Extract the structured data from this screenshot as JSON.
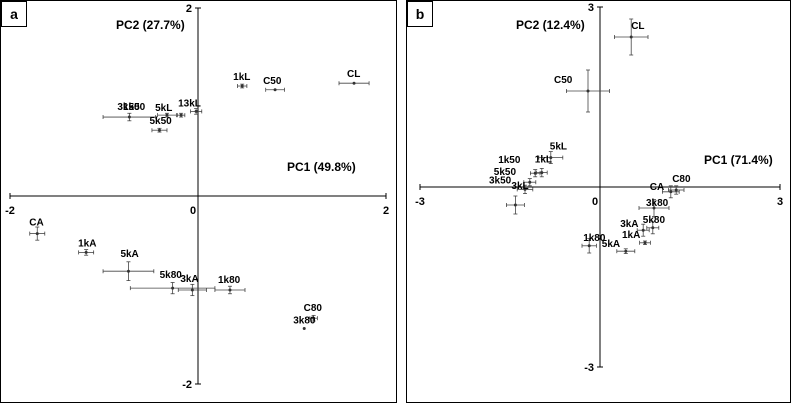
{
  "chart_data": [
    {
      "type": "scatter",
      "panel_label": "a",
      "xaxis_title": "PC1 (49.8%)",
      "yaxis_title": "PC2 (27.7%)",
      "xlim": [
        -2,
        2
      ],
      "ylim": [
        -2,
        2
      ],
      "x_ticks": [
        "-2",
        "0",
        "2"
      ],
      "y_ticks": [
        "2",
        "0",
        "-2"
      ],
      "tick_values_x": [
        -2,
        0,
        2
      ],
      "tick_values_y": [
        2,
        0,
        -2
      ],
      "points": [
        {
          "label": "CL",
          "x": 1.66,
          "y": 1.2,
          "xerr": 0.16,
          "yerr": 0.0
        },
        {
          "label": "C50",
          "x": 0.82,
          "y": 1.13,
          "xerr": 0.1,
          "yerr": 0.0
        },
        {
          "label": "1kL",
          "x": 0.47,
          "y": 1.17,
          "xerr": 0.05,
          "yerr": 0.02
        },
        {
          "label": "13kL",
          "x": -0.02,
          "y": 0.9,
          "xerr": 0.06,
          "yerr": 0.03
        },
        {
          "label": "5kL",
          "x": -0.18,
          "y": 0.86,
          "xerr": 0.04,
          "yerr": 0.02
        },
        {
          "label": "1k50",
          "x": -0.33,
          "y": 0.86,
          "xerr": 0.1,
          "yerr": 0.02
        },
        {
          "label": "3k50",
          "x": -0.73,
          "y": 0.84,
          "xerr": 0.28,
          "yerr": 0.04
        },
        {
          "label": "5k50",
          "x": -0.41,
          "y": 0.7,
          "xerr": 0.08,
          "yerr": 0.02
        },
        {
          "label": "CA",
          "x": -1.71,
          "y": -0.4,
          "xerr": 0.08,
          "yerr": 0.07
        },
        {
          "label": "1kA",
          "x": -1.19,
          "y": -0.6,
          "xerr": 0.08,
          "yerr": 0.03
        },
        {
          "label": "5kA",
          "x": -0.74,
          "y": -0.8,
          "xerr": 0.27,
          "yerr": 0.1
        },
        {
          "label": "5k80",
          "x": -0.27,
          "y": -0.98,
          "xerr": 0.45,
          "yerr": 0.06
        },
        {
          "label": "3kA",
          "x": -0.06,
          "y": -1.0,
          "xerr": 0.15,
          "yerr": 0.06
        },
        {
          "label": "1k80",
          "x": 0.34,
          "y": -1.0,
          "xerr": 0.16,
          "yerr": 0.04
        },
        {
          "label": "C80",
          "x": 1.23,
          "y": -1.3,
          "xerr": 0.04,
          "yerr": 0.03
        },
        {
          "label": "3k80",
          "x": 1.13,
          "y": -1.41,
          "xerr": 0.0,
          "yerr": 0.0
        }
      ]
    },
    {
      "type": "scatter",
      "panel_label": "b",
      "xaxis_title": "PC1 (71.4%)",
      "yaxis_title": "PC2 (12.4%)",
      "xlim": [
        -3,
        3
      ],
      "ylim": [
        -3,
        3
      ],
      "x_ticks": [
        "-3",
        "0",
        "3"
      ],
      "y_ticks": [
        "3",
        "0",
        "-3"
      ],
      "tick_values_x": [
        -3,
        0,
        3
      ],
      "tick_values_y": [
        3,
        0,
        -3
      ],
      "points": [
        {
          "label": "CL",
          "x": 0.52,
          "y": 2.5,
          "xerr": 0.28,
          "yerr": 0.3
        },
        {
          "label": "C50",
          "x": -0.2,
          "y": 1.6,
          "xerr": 0.36,
          "yerr": 0.35
        },
        {
          "label": "5kL",
          "x": -0.82,
          "y": 0.49,
          "xerr": 0.2,
          "yerr": 0.1
        },
        {
          "label": "1kL",
          "x": -0.97,
          "y": 0.24,
          "xerr": 0.09,
          "yerr": 0.07
        },
        {
          "label": "1k50",
          "x": -1.08,
          "y": 0.23,
          "xerr": 0.08,
          "yerr": 0.06
        },
        {
          "label": "5k50",
          "x": -1.17,
          "y": 0.08,
          "xerr": 0.1,
          "yerr": 0.06
        },
        {
          "label": "3k50",
          "x": -1.25,
          "y": -0.04,
          "xerr": 0.13,
          "yerr": 0.07
        },
        {
          "label": "3kL",
          "x": -1.41,
          "y": -0.3,
          "xerr": 0.15,
          "yerr": 0.15
        },
        {
          "label": "CA",
          "x": 1.18,
          "y": -0.08,
          "xerr": 0.14,
          "yerr": 0.1
        },
        {
          "label": "C80",
          "x": 1.27,
          "y": -0.05,
          "xerr": 0.13,
          "yerr": 0.07
        },
        {
          "label": "3k80",
          "x": 0.9,
          "y": -0.35,
          "xerr": 0.25,
          "yerr": 0.14
        },
        {
          "label": "5k80",
          "x": 0.88,
          "y": -0.68,
          "xerr": 0.1,
          "yerr": 0.1
        },
        {
          "label": "3kA",
          "x": 0.72,
          "y": -0.72,
          "xerr": 0.1,
          "yerr": 0.1
        },
        {
          "label": "1kA",
          "x": 0.75,
          "y": -0.93,
          "xerr": 0.09,
          "yerr": 0.03
        },
        {
          "label": "5kA",
          "x": 0.43,
          "y": -1.07,
          "xerr": 0.15,
          "yerr": 0.04
        },
        {
          "label": "1k80",
          "x": -0.18,
          "y": -0.98,
          "xerr": 0.12,
          "yerr": 0.12
        }
      ]
    }
  ]
}
